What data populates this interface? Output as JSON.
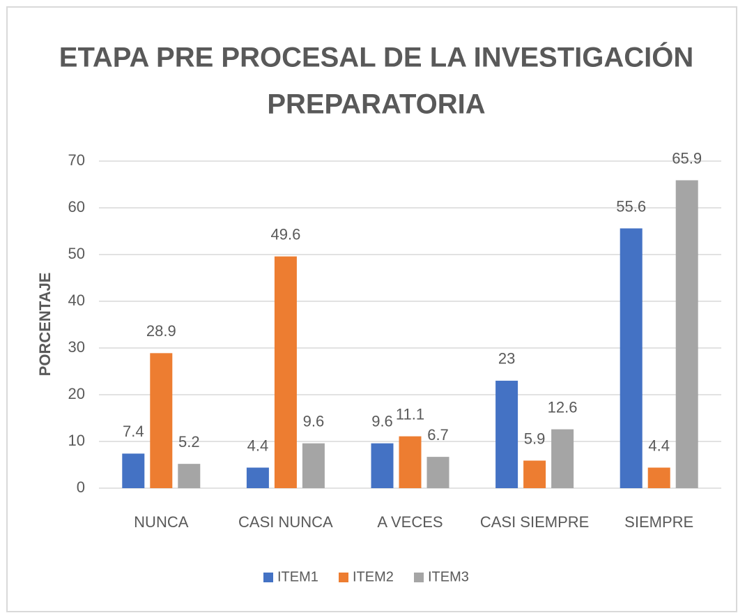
{
  "chart_data": {
    "type": "bar",
    "title": [
      "ETAPA PRE PROCESAL DE LA INVESTIGACIÓN",
      "PREPARATORIA"
    ],
    "y_label": "PORCENTAJE",
    "categories": [
      "NUNCA",
      "CASI NUNCA",
      "A VECES",
      "CASI SIEMPRE",
      "SIEMPRE"
    ],
    "series": [
      {
        "name": "ITEM1",
        "color": "#4472c4",
        "values": [
          7.4,
          4.4,
          9.6,
          23,
          55.6
        ]
      },
      {
        "name": "ITEM2",
        "color": "#ed7d31",
        "values": [
          28.9,
          49.6,
          11.1,
          5.9,
          4.4
        ]
      },
      {
        "name": "ITEM3",
        "color": "#a5a5a5",
        "values": [
          5.2,
          9.6,
          6.7,
          12.6,
          65.9
        ]
      }
    ],
    "ylim": [
      0,
      70
    ],
    "yticks": [
      0,
      10,
      20,
      30,
      40,
      50,
      60,
      70
    ],
    "grid": true,
    "legend": "bottom"
  }
}
